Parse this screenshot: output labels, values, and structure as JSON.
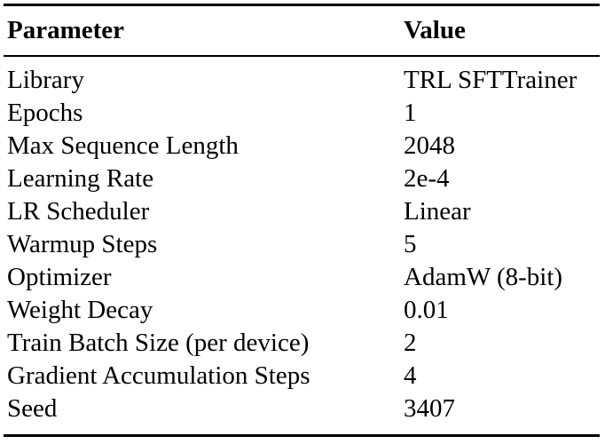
{
  "table": {
    "headers": {
      "parameter": "Parameter",
      "value": "Value"
    },
    "rows": [
      {
        "parameter": "Library",
        "value": "TRL SFTTrainer"
      },
      {
        "parameter": "Epochs",
        "value": "1"
      },
      {
        "parameter": "Max Sequence Length",
        "value": "2048"
      },
      {
        "parameter": "Learning Rate",
        "value": "2e-4"
      },
      {
        "parameter": "LR Scheduler",
        "value": "Linear"
      },
      {
        "parameter": "Warmup Steps",
        "value": "5"
      },
      {
        "parameter": "Optimizer",
        "value": "AdamW (8-bit)"
      },
      {
        "parameter": "Weight Decay",
        "value": "0.01"
      },
      {
        "parameter": "Train Batch Size (per device)",
        "value": "2"
      },
      {
        "parameter": "Gradient Accumulation Steps",
        "value": "4"
      },
      {
        "parameter": "Seed",
        "value": "3407"
      }
    ]
  }
}
